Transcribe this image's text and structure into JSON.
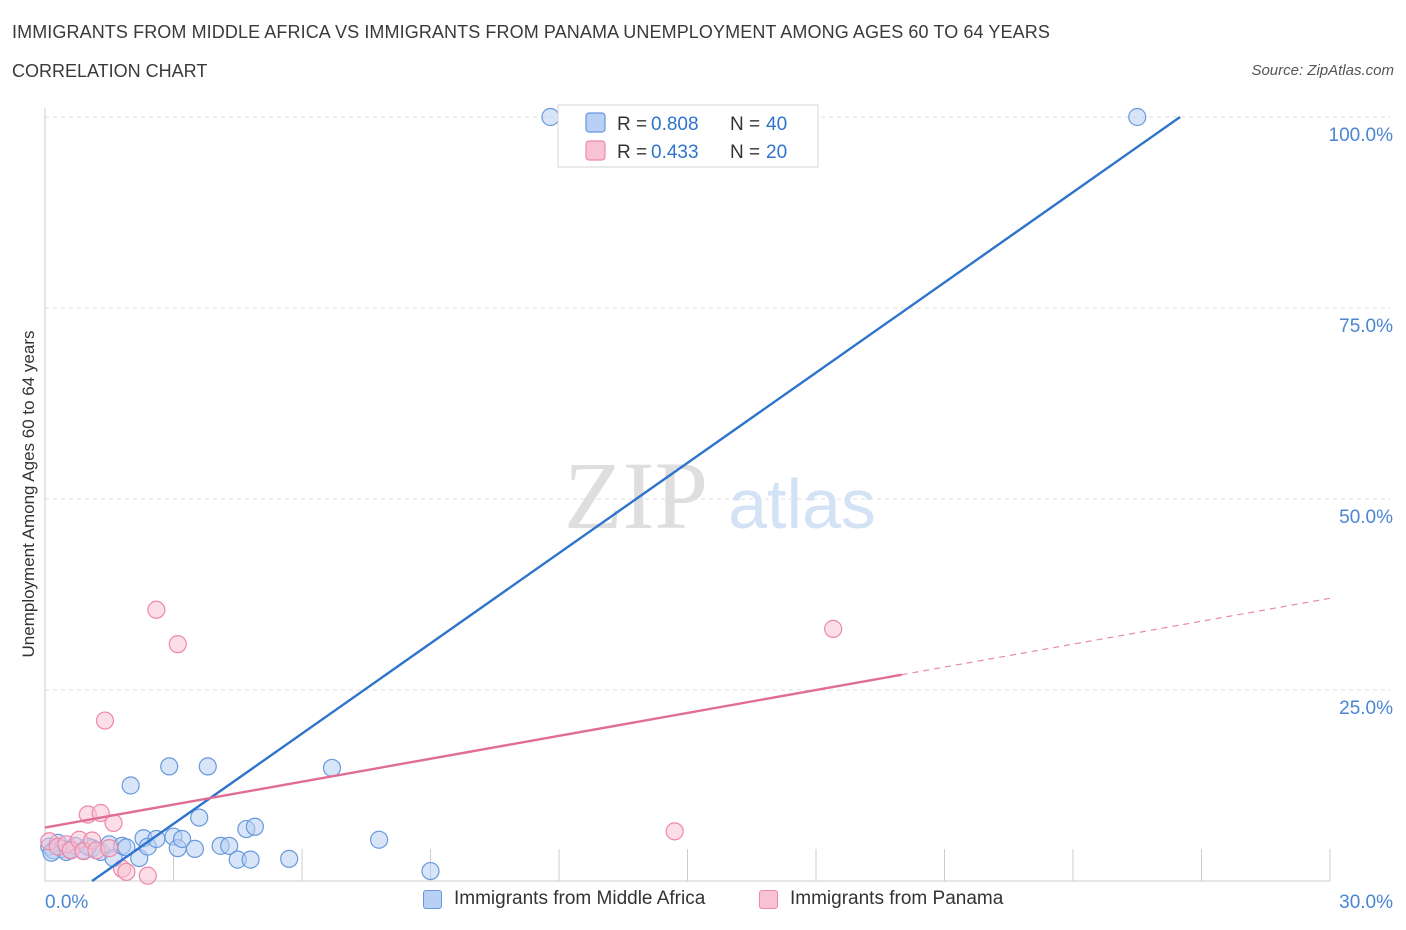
{
  "chart_data": {
    "type": "scatter",
    "title": "IMMIGRANTS FROM MIDDLE AFRICA VS IMMIGRANTS FROM PANAMA UNEMPLOYMENT AMONG AGES 60 TO 64 YEARS",
    "subtitle": "CORRELATION CHART",
    "source": "Source: ZipAtlas.com",
    "xlabel": "",
    "ylabel": "Unemployment Among Ages 60 to 64 years",
    "xlim": [
      0,
      30
    ],
    "ylim": [
      0,
      100
    ],
    "x_tick_labels": [
      "0.0%",
      "30.0%"
    ],
    "y_ticks": [
      25,
      50,
      75,
      100
    ],
    "y_tick_labels": [
      "25.0%",
      "50.0%",
      "75.0%",
      "100.0%"
    ],
    "grid": true,
    "watermark": "ZIPatlas",
    "legend_position": "top-center",
    "series": [
      {
        "name": "Immigrants from Middle Africa",
        "color": "#6699dd",
        "fill": "#b8d0f3",
        "line_color": "#2f74cc",
        "r_label": "R = ",
        "r_value": "0.808",
        "n_label": "N = ",
        "n_value": "40",
        "trend": {
          "x0": 1.1,
          "y0": 0,
          "x1": 26.5,
          "y1": 100
        },
        "points": [
          [
            0.1,
            4.5
          ],
          [
            0.2,
            4.0
          ],
          [
            0.3,
            5.0
          ],
          [
            0.4,
            4.2
          ],
          [
            0.5,
            3.8
          ],
          [
            0.7,
            4.6
          ],
          [
            0.9,
            4.0
          ],
          [
            1.1,
            4.3
          ],
          [
            1.3,
            3.8
          ],
          [
            1.5,
            4.8
          ],
          [
            1.6,
            3.0
          ],
          [
            1.8,
            4.6
          ],
          [
            1.9,
            4.4
          ],
          [
            2.0,
            12.5
          ],
          [
            2.2,
            3.0
          ],
          [
            2.3,
            5.6
          ],
          [
            2.4,
            4.5
          ],
          [
            2.6,
            5.5
          ],
          [
            2.9,
            15.0
          ],
          [
            3.0,
            5.8
          ],
          [
            3.1,
            4.3
          ],
          [
            3.2,
            5.5
          ],
          [
            3.5,
            4.2
          ],
          [
            3.6,
            8.3
          ],
          [
            3.8,
            15.0
          ],
          [
            4.1,
            4.6
          ],
          [
            4.3,
            4.6
          ],
          [
            4.5,
            2.8
          ],
          [
            4.7,
            6.8
          ],
          [
            4.8,
            2.8
          ],
          [
            4.9,
            7.1
          ],
          [
            5.7,
            2.9
          ],
          [
            6.7,
            14.8
          ],
          [
            7.8,
            5.4
          ],
          [
            9.0,
            1.3
          ],
          [
            11.8,
            100.0
          ],
          [
            25.5,
            100.0
          ],
          [
            0.15,
            3.7
          ],
          [
            0.6,
            4.1
          ],
          [
            1.0,
            4.5
          ]
        ]
      },
      {
        "name": "Immigrants from Panama",
        "color": "#ee88aa",
        "fill": "#f7c3d4",
        "line_color": "#e06d96",
        "r_label": "R = ",
        "r_value": "0.433",
        "n_label": "N = ",
        "n_value": "20",
        "trend": {
          "x0": 0,
          "y0": 7.0,
          "x1": 20,
          "y1": 27.0
        },
        "trend_dashed": {
          "x0": 20,
          "y0": 27.0,
          "x1": 30,
          "y1": 37.0
        },
        "points": [
          [
            0.1,
            5.2
          ],
          [
            0.3,
            4.5
          ],
          [
            0.5,
            4.8
          ],
          [
            0.6,
            4.0
          ],
          [
            0.8,
            5.4
          ],
          [
            0.9,
            3.9
          ],
          [
            1.0,
            8.7
          ],
          [
            1.1,
            5.3
          ],
          [
            1.2,
            4.0
          ],
          [
            1.3,
            8.9
          ],
          [
            1.4,
            21.0
          ],
          [
            1.5,
            4.3
          ],
          [
            1.6,
            7.6
          ],
          [
            1.8,
            1.6
          ],
          [
            1.9,
            1.2
          ],
          [
            2.4,
            0.7
          ],
          [
            2.6,
            35.5
          ],
          [
            3.1,
            31.0
          ],
          [
            14.7,
            6.5
          ],
          [
            18.4,
            33.0
          ]
        ]
      }
    ]
  }
}
